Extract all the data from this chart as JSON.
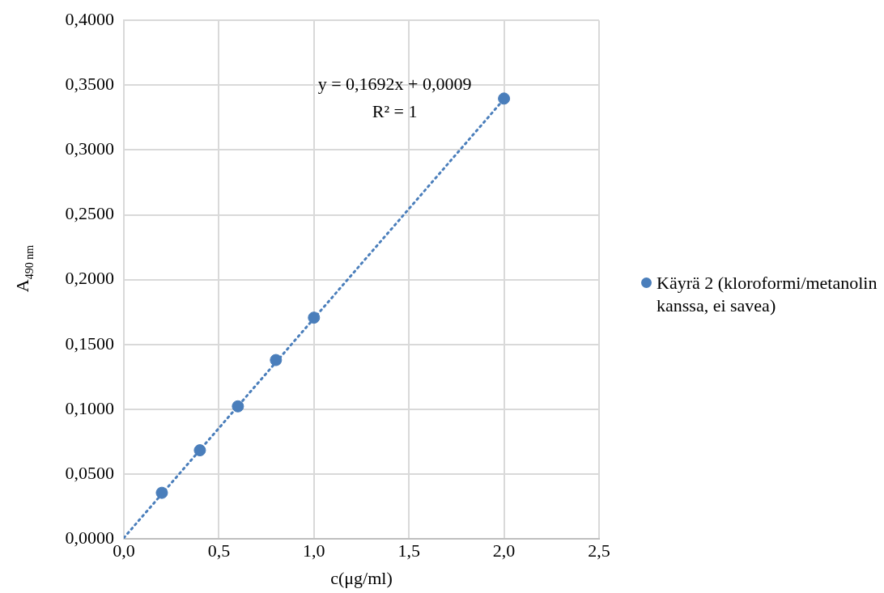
{
  "chart_data": {
    "type": "scatter",
    "xlabel": "c(μg/ml)",
    "ylabel": "A$_{490 nm}$",
    "annotations": [
      "y = 0,1692x + 0,0009",
      "R² = 1"
    ],
    "series": [
      {
        "name": "Käyrä 2 (kloroformi/metanolin kanssa, ei savea)",
        "color": "#4a7ebb",
        "x": [
          0.2,
          0.4,
          0.6,
          0.8,
          1.0,
          2.0
        ],
        "values": [
          0.0356,
          0.0684,
          0.1023,
          0.138,
          0.1707,
          0.3397
        ],
        "marker": "circle"
      },
      {
        "type": "line",
        "color": "#4a7ebb",
        "x": [
          0,
          2
        ],
        "values": [
          0.0009,
          0.3393
        ],
        "line_style": "dotted",
        "marker": "none"
      }
    ],
    "xlim": [
      0,
      2.5
    ],
    "xticks": [
      {
        "value": 0,
        "label": "0,0"
      },
      {
        "value": 0.5,
        "label": "0,5"
      },
      {
        "value": 1,
        "label": "1,0"
      },
      {
        "value": 1.5,
        "label": "1,5"
      },
      {
        "value": 2,
        "label": "2,0"
      },
      {
        "value": 2.5,
        "label": "2,5"
      }
    ],
    "ylim": [
      0,
      0.4
    ],
    "yticks": [
      {
        "value": 0,
        "label": "0,0000"
      },
      {
        "value": 0.05,
        "label": "0,0500"
      },
      {
        "value": 0.1,
        "label": "0,1000"
      },
      {
        "value": 0.15,
        "label": "0,1500"
      },
      {
        "value": 0.2,
        "label": "0,2000"
      },
      {
        "value": 0.25,
        "label": "0,2500"
      },
      {
        "value": 0.3,
        "label": "0,3000"
      },
      {
        "value": 0.35,
        "label": "0,3500"
      },
      {
        "value": 0.4,
        "label": "0,4000"
      }
    ],
    "grid": true,
    "legend": "right"
  }
}
